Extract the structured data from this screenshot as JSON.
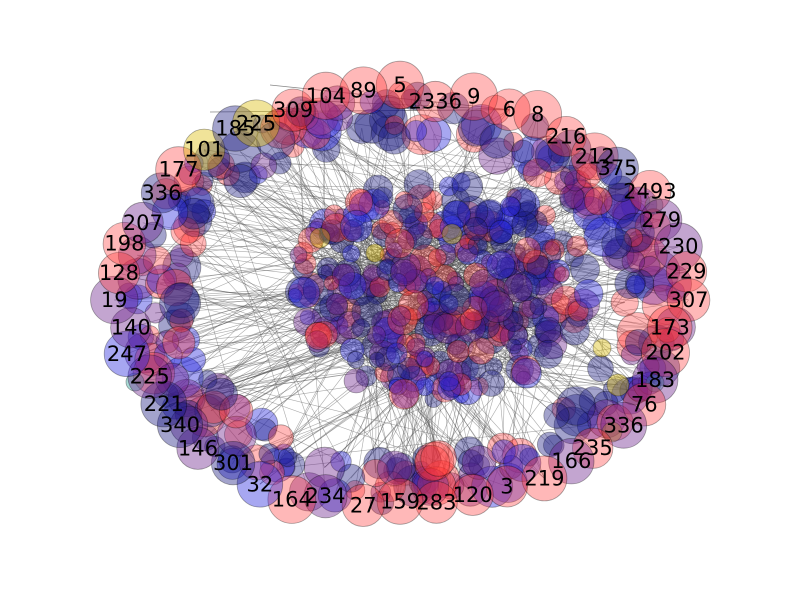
{
  "graph": {
    "layout": "ellipse-ring",
    "colors": {
      "red": "#ff3333",
      "blue": "#2222dd",
      "navy": "#1a1a80",
      "purple": "#6a1f8a",
      "yellow": "#d9b800",
      "teal": "#2aa59a",
      "edge": "#555555"
    },
    "nodes": [
      {
        "label": "5",
        "color": "red"
      },
      {
        "label": "2336",
        "color": "red"
      },
      {
        "label": "9",
        "color": "red"
      },
      {
        "label": "6",
        "color": "red"
      },
      {
        "label": "8",
        "color": "red"
      },
      {
        "label": "216",
        "color": "red"
      },
      {
        "label": "212",
        "color": "red"
      },
      {
        "label": "375",
        "color": "navy"
      },
      {
        "label": "2493",
        "color": "red"
      },
      {
        "label": "279",
        "color": "purple"
      },
      {
        "label": "230",
        "color": "purple"
      },
      {
        "label": "229",
        "color": "red"
      },
      {
        "label": "307",
        "color": "red"
      },
      {
        "label": "173",
        "color": "red"
      },
      {
        "label": "202",
        "color": "red"
      },
      {
        "label": "183",
        "color": "purple"
      },
      {
        "label": "76",
        "color": "red"
      },
      {
        "label": "336",
        "color": "purple"
      },
      {
        "label": "235",
        "color": "red"
      },
      {
        "label": "166",
        "color": "purple"
      },
      {
        "label": "219",
        "color": "red"
      },
      {
        "label": "3",
        "color": "red"
      },
      {
        "label": "120",
        "color": "red"
      },
      {
        "label": "283",
        "color": "red"
      },
      {
        "label": "159",
        "color": "red"
      },
      {
        "label": "27",
        "color": "red"
      },
      {
        "label": "234",
        "color": "purple"
      },
      {
        "label": "164",
        "color": "red"
      },
      {
        "label": "32",
        "color": "blue"
      },
      {
        "label": "301",
        "color": "navy"
      },
      {
        "label": "146",
        "color": "purple"
      },
      {
        "label": "340",
        "color": "navy"
      },
      {
        "label": "221",
        "color": "navy"
      },
      {
        "label": "225",
        "color": "purple"
      },
      {
        "label": "247",
        "color": "blue"
      },
      {
        "label": "140",
        "color": "purple"
      },
      {
        "label": "19",
        "color": "purple"
      },
      {
        "label": "128",
        "color": "red"
      },
      {
        "label": "198",
        "color": "red"
      },
      {
        "label": "207",
        "color": "purple"
      },
      {
        "label": "336",
        "color": "navy"
      },
      {
        "label": "177",
        "color": "red"
      },
      {
        "label": "101",
        "color": "yellow"
      },
      {
        "label": "185",
        "color": "navy"
      },
      {
        "label": "225",
        "color": "yellow"
      },
      {
        "label": "309",
        "color": "red"
      },
      {
        "label": "104",
        "color": "red"
      },
      {
        "label": "89",
        "color": "red"
      }
    ]
  }
}
